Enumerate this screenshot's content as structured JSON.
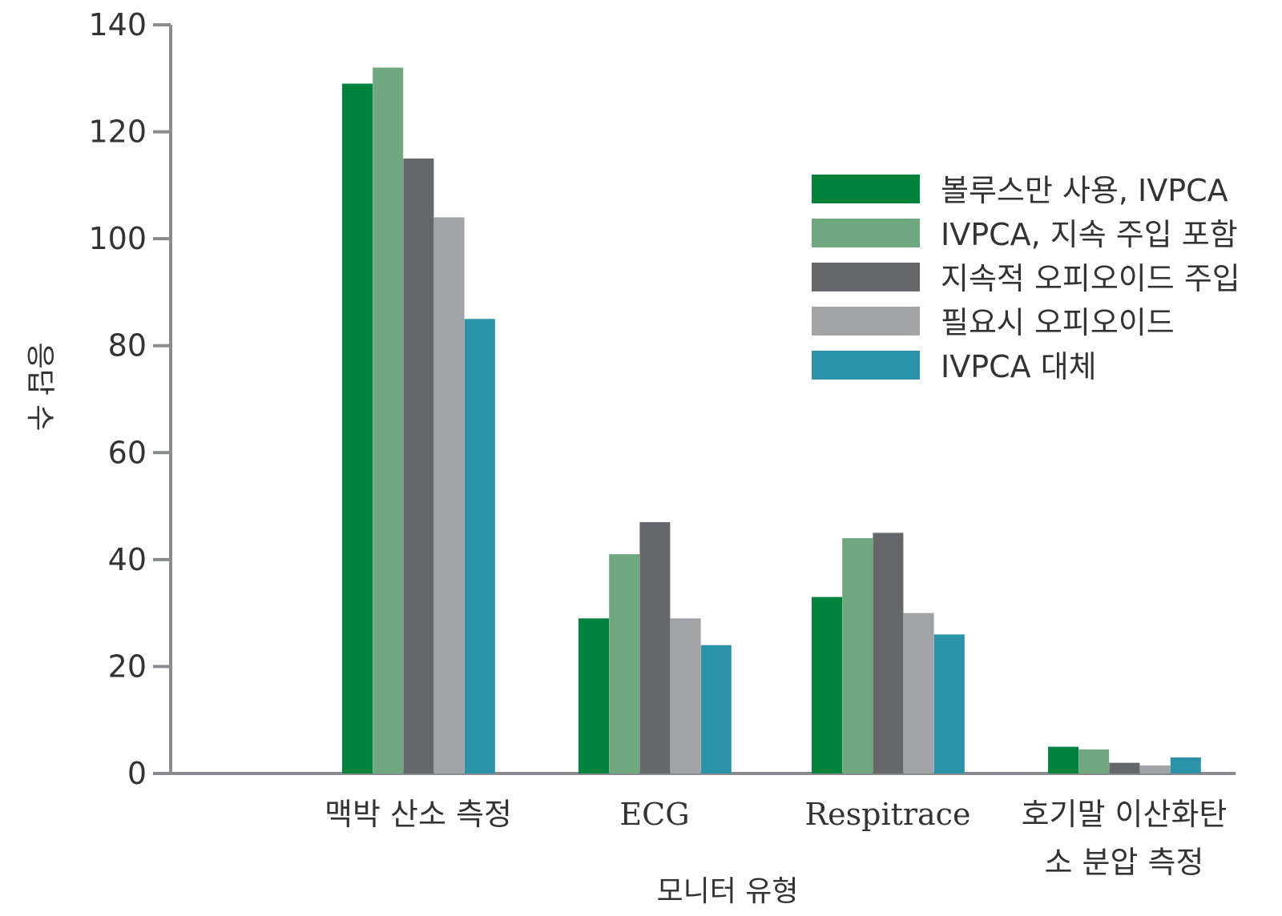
{
  "chart_data": {
    "type": "bar",
    "title": "",
    "xlabel": "모니터 유형",
    "ylabel": "응답 수",
    "ylim": [
      0,
      140
    ],
    "yticks": [
      0,
      20,
      40,
      60,
      80,
      100,
      120,
      140
    ],
    "categories": [
      "",
      "맥박 산소 측정",
      "ECG",
      "Respitrace",
      "호기말 이산화탄소 분압 측정"
    ],
    "category_lines": [
      [],
      [
        "맥박 산소 측정"
      ],
      [
        "ECG"
      ],
      [
        "Respitrace"
      ],
      [
        "호기말 이산화탄",
        "소 분압 측정"
      ]
    ],
    "series": [
      {
        "name": "볼루스만 사용, IVPCA",
        "color": "#00843d",
        "values": [
          0,
          129,
          29,
          33,
          5
        ]
      },
      {
        "name": "IVPCA, 지속 주입 포함",
        "color": "#6fa77e",
        "values": [
          0,
          132,
          41,
          44,
          4.5
        ]
      },
      {
        "name": "지속적 오피오이드 주입",
        "color": "#66676b",
        "values": [
          0,
          115,
          47,
          45,
          2
        ]
      },
      {
        "name": "필요시 오피오이드",
        "color": "#a2a3a7",
        "values": [
          0,
          104,
          29,
          30,
          1.5
        ]
      },
      {
        "name": "IVPCA 대체",
        "color": "#2a93a8",
        "values": [
          0,
          85,
          24,
          26,
          3
        ]
      }
    ],
    "grid": false,
    "legend_position": "upper-right"
  }
}
